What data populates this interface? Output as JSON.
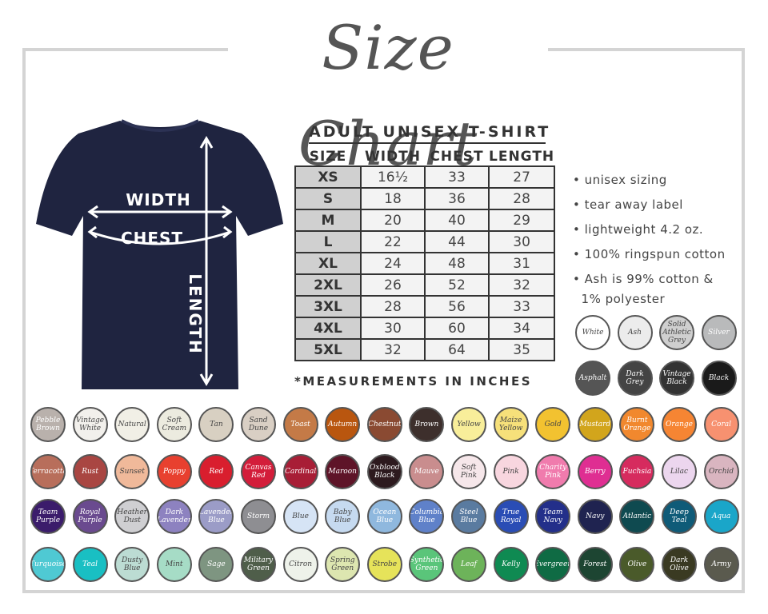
{
  "title": "Size Chart",
  "shirt": {
    "color": "#1f2440",
    "width_label": "WIDTH",
    "chest_label": "CHEST",
    "length_label": "LENGTH"
  },
  "table": {
    "title": "ADULT UNISEX T-SHIRT",
    "headers": [
      "SIZE",
      "WIDTH",
      "CHEST",
      "LENGTH"
    ],
    "rows": [
      [
        "XS",
        "16½",
        "33",
        "27"
      ],
      [
        "S",
        "18",
        "36",
        "28"
      ],
      [
        "M",
        "20",
        "40",
        "29"
      ],
      [
        "L",
        "22",
        "44",
        "30"
      ],
      [
        "XL",
        "24",
        "48",
        "31"
      ],
      [
        "2XL",
        "26",
        "52",
        "32"
      ],
      [
        "3XL",
        "28",
        "56",
        "33"
      ],
      [
        "4XL",
        "30",
        "60",
        "34"
      ],
      [
        "5XL",
        "32",
        "64",
        "35"
      ]
    ],
    "note": "*MEASUREMENTS IN INCHES"
  },
  "features": [
    "• unisex sizing",
    "• tear away label",
    "• lightweight 4.2 oz.",
    "• 100% ringspun cotton",
    "• Ash is 99% cotton &",
    "  1% polyester"
  ],
  "grey_swatches": [
    {
      "name": "White",
      "color": "#ffffff"
    },
    {
      "name": "Ash",
      "color": "#ececec"
    },
    {
      "name": "Solid Athletic Grey",
      "color": "#cfcfcf"
    },
    {
      "name": "Silver",
      "color": "#b9babb"
    },
    {
      "name": "Asphalt",
      "color": "#555555"
    },
    {
      "name": "Dark Grey",
      "color": "#444444"
    },
    {
      "name": "Vintage Black",
      "color": "#333333"
    },
    {
      "name": "Black",
      "color": "#1a1a1a"
    }
  ],
  "swatches": [
    [
      {
        "name": "Pebble Brown",
        "color": "#b9b1ac"
      },
      {
        "name": "Vintage White",
        "color": "#f2f0ec"
      },
      {
        "name": "Natural",
        "color": "#f1efe6"
      },
      {
        "name": "Soft Cream",
        "color": "#ecebdf"
      },
      {
        "name": "Tan",
        "color": "#d8d0c2"
      },
      {
        "name": "Sand Dune",
        "color": "#d9cfc4"
      },
      {
        "name": "Toast",
        "color": "#c47a47"
      },
      {
        "name": "Autumn",
        "color": "#b9560f"
      },
      {
        "name": "Chestnut",
        "color": "#8a4a32"
      },
      {
        "name": "Brown",
        "color": "#3d2f2c"
      },
      {
        "name": "Yellow",
        "color": "#f8ee9a"
      },
      {
        "name": "Maize Yellow",
        "color": "#f6e07a"
      },
      {
        "name": "Gold",
        "color": "#f2c230"
      },
      {
        "name": "Mustard",
        "color": "#d2a51c"
      },
      {
        "name": "Burnt Orange",
        "color": "#f1882e"
      },
      {
        "name": "Orange",
        "color": "#f68533"
      },
      {
        "name": "Coral",
        "color": "#f79170"
      }
    ],
    [
      {
        "name": "Terracotta",
        "color": "#b86e5b"
      },
      {
        "name": "Rust",
        "color": "#a94642"
      },
      {
        "name": "Sunset",
        "color": "#f0b99a"
      },
      {
        "name": "Poppy",
        "color": "#e8402f"
      },
      {
        "name": "Red",
        "color": "#d91e2e"
      },
      {
        "name": "Canvas Red",
        "color": "#d31d3a"
      },
      {
        "name": "Cardinal",
        "color": "#a81e36"
      },
      {
        "name": "Maroon",
        "color": "#5e1428"
      },
      {
        "name": "Oxblood Black",
        "color": "#2d1a1e"
      },
      {
        "name": "Mauve",
        "color": "#c98d8e"
      },
      {
        "name": "Soft Pink",
        "color": "#f6e7ea"
      },
      {
        "name": "Pink",
        "color": "#f8d6df"
      },
      {
        "name": "Charity Pink",
        "color": "#f07bad"
      },
      {
        "name": "Berry",
        "color": "#df2e92"
      },
      {
        "name": "Fuchsia",
        "color": "#d62b5e"
      },
      {
        "name": "Lilac",
        "color": "#ecd6ee"
      },
      {
        "name": "Orchid",
        "color": "#d9b5c0"
      }
    ],
    [
      {
        "name": "Team Purple",
        "color": "#3b1c6b"
      },
      {
        "name": "Royal Purple",
        "color": "#6a4a8f"
      },
      {
        "name": "Heather Dust",
        "color": "#cfcfd2"
      },
      {
        "name": "Dark Lavender",
        "color": "#8d82c0"
      },
      {
        "name": "Lavender Blue",
        "color": "#9b9cc7"
      },
      {
        "name": "Storm",
        "color": "#8e8e92"
      },
      {
        "name": "Blue",
        "color": "#d6e4f5"
      },
      {
        "name": "Baby Blue",
        "color": "#c6daf0"
      },
      {
        "name": "Ocean Blue",
        "color": "#8fb8de"
      },
      {
        "name": "Columbia Blue",
        "color": "#5f81c9"
      },
      {
        "name": "Steel Blue",
        "color": "#5a7ba0"
      },
      {
        "name": "True Royal",
        "color": "#2a4db5"
      },
      {
        "name": "Team Navy",
        "color": "#232f8a"
      },
      {
        "name": "Navy",
        "color": "#1f2350"
      },
      {
        "name": "Atlantic",
        "color": "#0f4a50"
      },
      {
        "name": "Deep Teal",
        "color": "#0f5b78"
      },
      {
        "name": "Aqua",
        "color": "#1aa6c9"
      }
    ],
    [
      {
        "name": "Turquoise",
        "color": "#4fc9d3"
      },
      {
        "name": "Teal",
        "color": "#19bfc3"
      },
      {
        "name": "Dusty Blue",
        "color": "#bcdcd3"
      },
      {
        "name": "Mint",
        "color": "#a6dcc6"
      },
      {
        "name": "Sage",
        "color": "#7e9581"
      },
      {
        "name": "Military Green",
        "color": "#4f5e4a"
      },
      {
        "name": "Citron",
        "color": "#eef2ea"
      },
      {
        "name": "Spring Green",
        "color": "#dde6b0"
      },
      {
        "name": "Strobe",
        "color": "#e6e35a"
      },
      {
        "name": "Synthetic Green",
        "color": "#5ac57a"
      },
      {
        "name": "Leaf",
        "color": "#6db35a"
      },
      {
        "name": "Kelly",
        "color": "#0f8a52"
      },
      {
        "name": "Evergreen",
        "color": "#0f6b44"
      },
      {
        "name": "Forest",
        "color": "#1d4532"
      },
      {
        "name": "Olive",
        "color": "#4a5a2a"
      },
      {
        "name": "Dark Olive",
        "color": "#3a3a22"
      },
      {
        "name": "Army",
        "color": "#5a5a4e"
      }
    ]
  ]
}
